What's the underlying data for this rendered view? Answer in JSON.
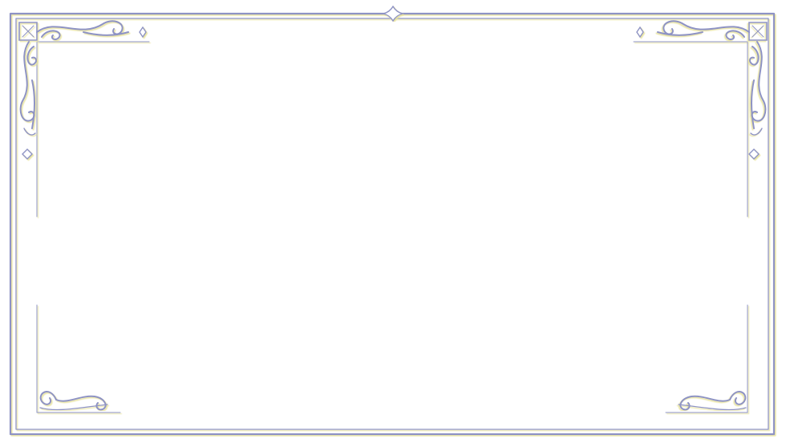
{
  "frame": {
    "style": "ornate double-line border with scroll flourishes",
    "colors": {
      "line": "#8e93c4",
      "line_dark": "#6f74a8",
      "gold_shadow": "#e7e29a",
      "background": "#ffffff"
    },
    "ornaments": {
      "top_left": "scroll-flourish-icon",
      "top_right": "scroll-flourish-icon",
      "bottom_left": "scroll-curl-icon",
      "bottom_right": "scroll-curl-icon",
      "top_center": "diamond-point-icon",
      "sparkles": "diamond-sparkle-icon"
    }
  },
  "content": {
    "text": ""
  }
}
